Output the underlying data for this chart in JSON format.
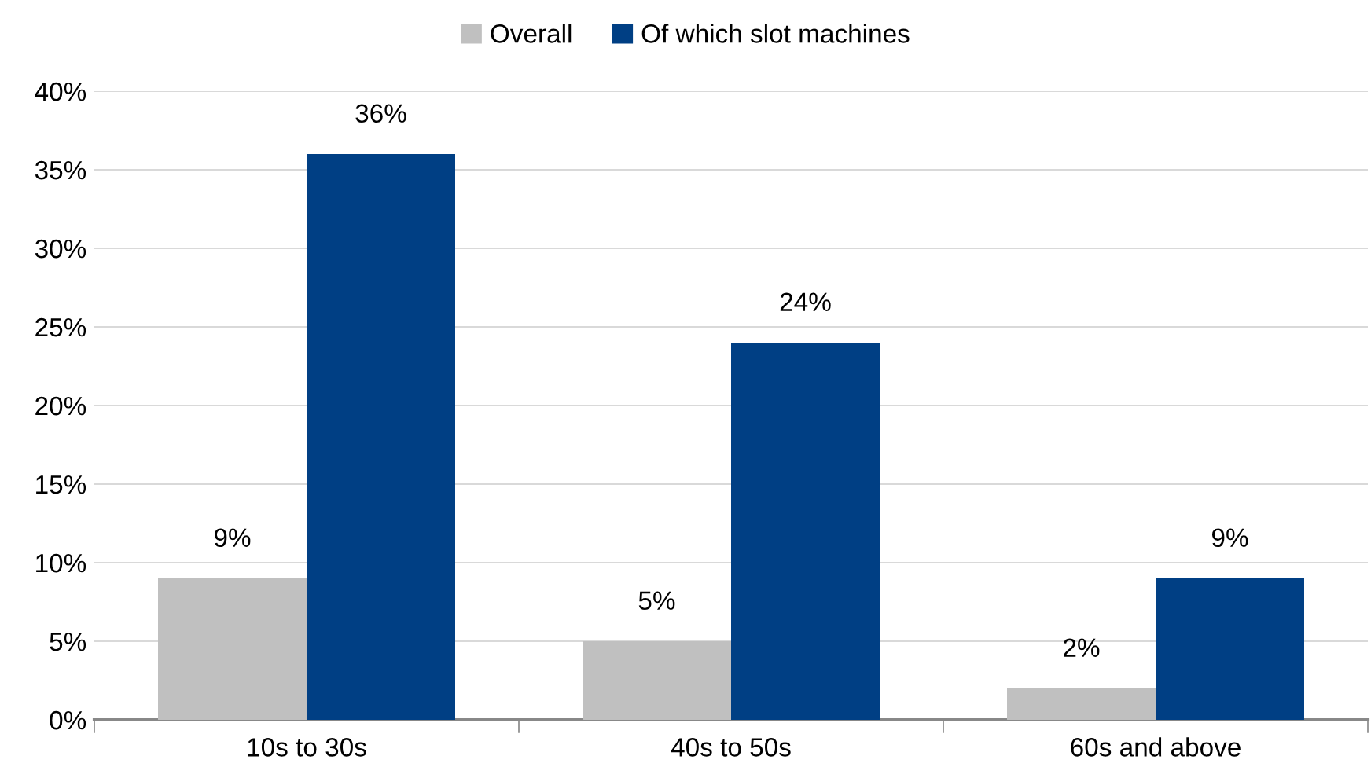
{
  "chart_data": {
    "type": "bar",
    "categories": [
      "10s to 30s",
      "40s to 50s",
      "60s and above"
    ],
    "series": [
      {
        "name": "Overall",
        "color": "#c0c0c0",
        "values": [
          9,
          5,
          2
        ],
        "value_labels": [
          "9%",
          "5%",
          "2%"
        ]
      },
      {
        "name": "Of which slot machines",
        "color": "#003f84",
        "values": [
          36,
          24,
          9
        ],
        "value_labels": [
          "36%",
          "24%",
          "9%"
        ]
      }
    ],
    "ylim": [
      0,
      40
    ],
    "yticks": [
      {
        "value": 0,
        "label": "0%"
      },
      {
        "value": 5,
        "label": "5%"
      },
      {
        "value": 10,
        "label": "10%"
      },
      {
        "value": 15,
        "label": "15%"
      },
      {
        "value": 20,
        "label": "20%"
      },
      {
        "value": 25,
        "label": "25%"
      },
      {
        "value": 30,
        "label": "30%"
      },
      {
        "value": 35,
        "label": "35%"
      },
      {
        "value": 40,
        "label": "40%"
      }
    ],
    "grid": "y",
    "legend": "top"
  }
}
